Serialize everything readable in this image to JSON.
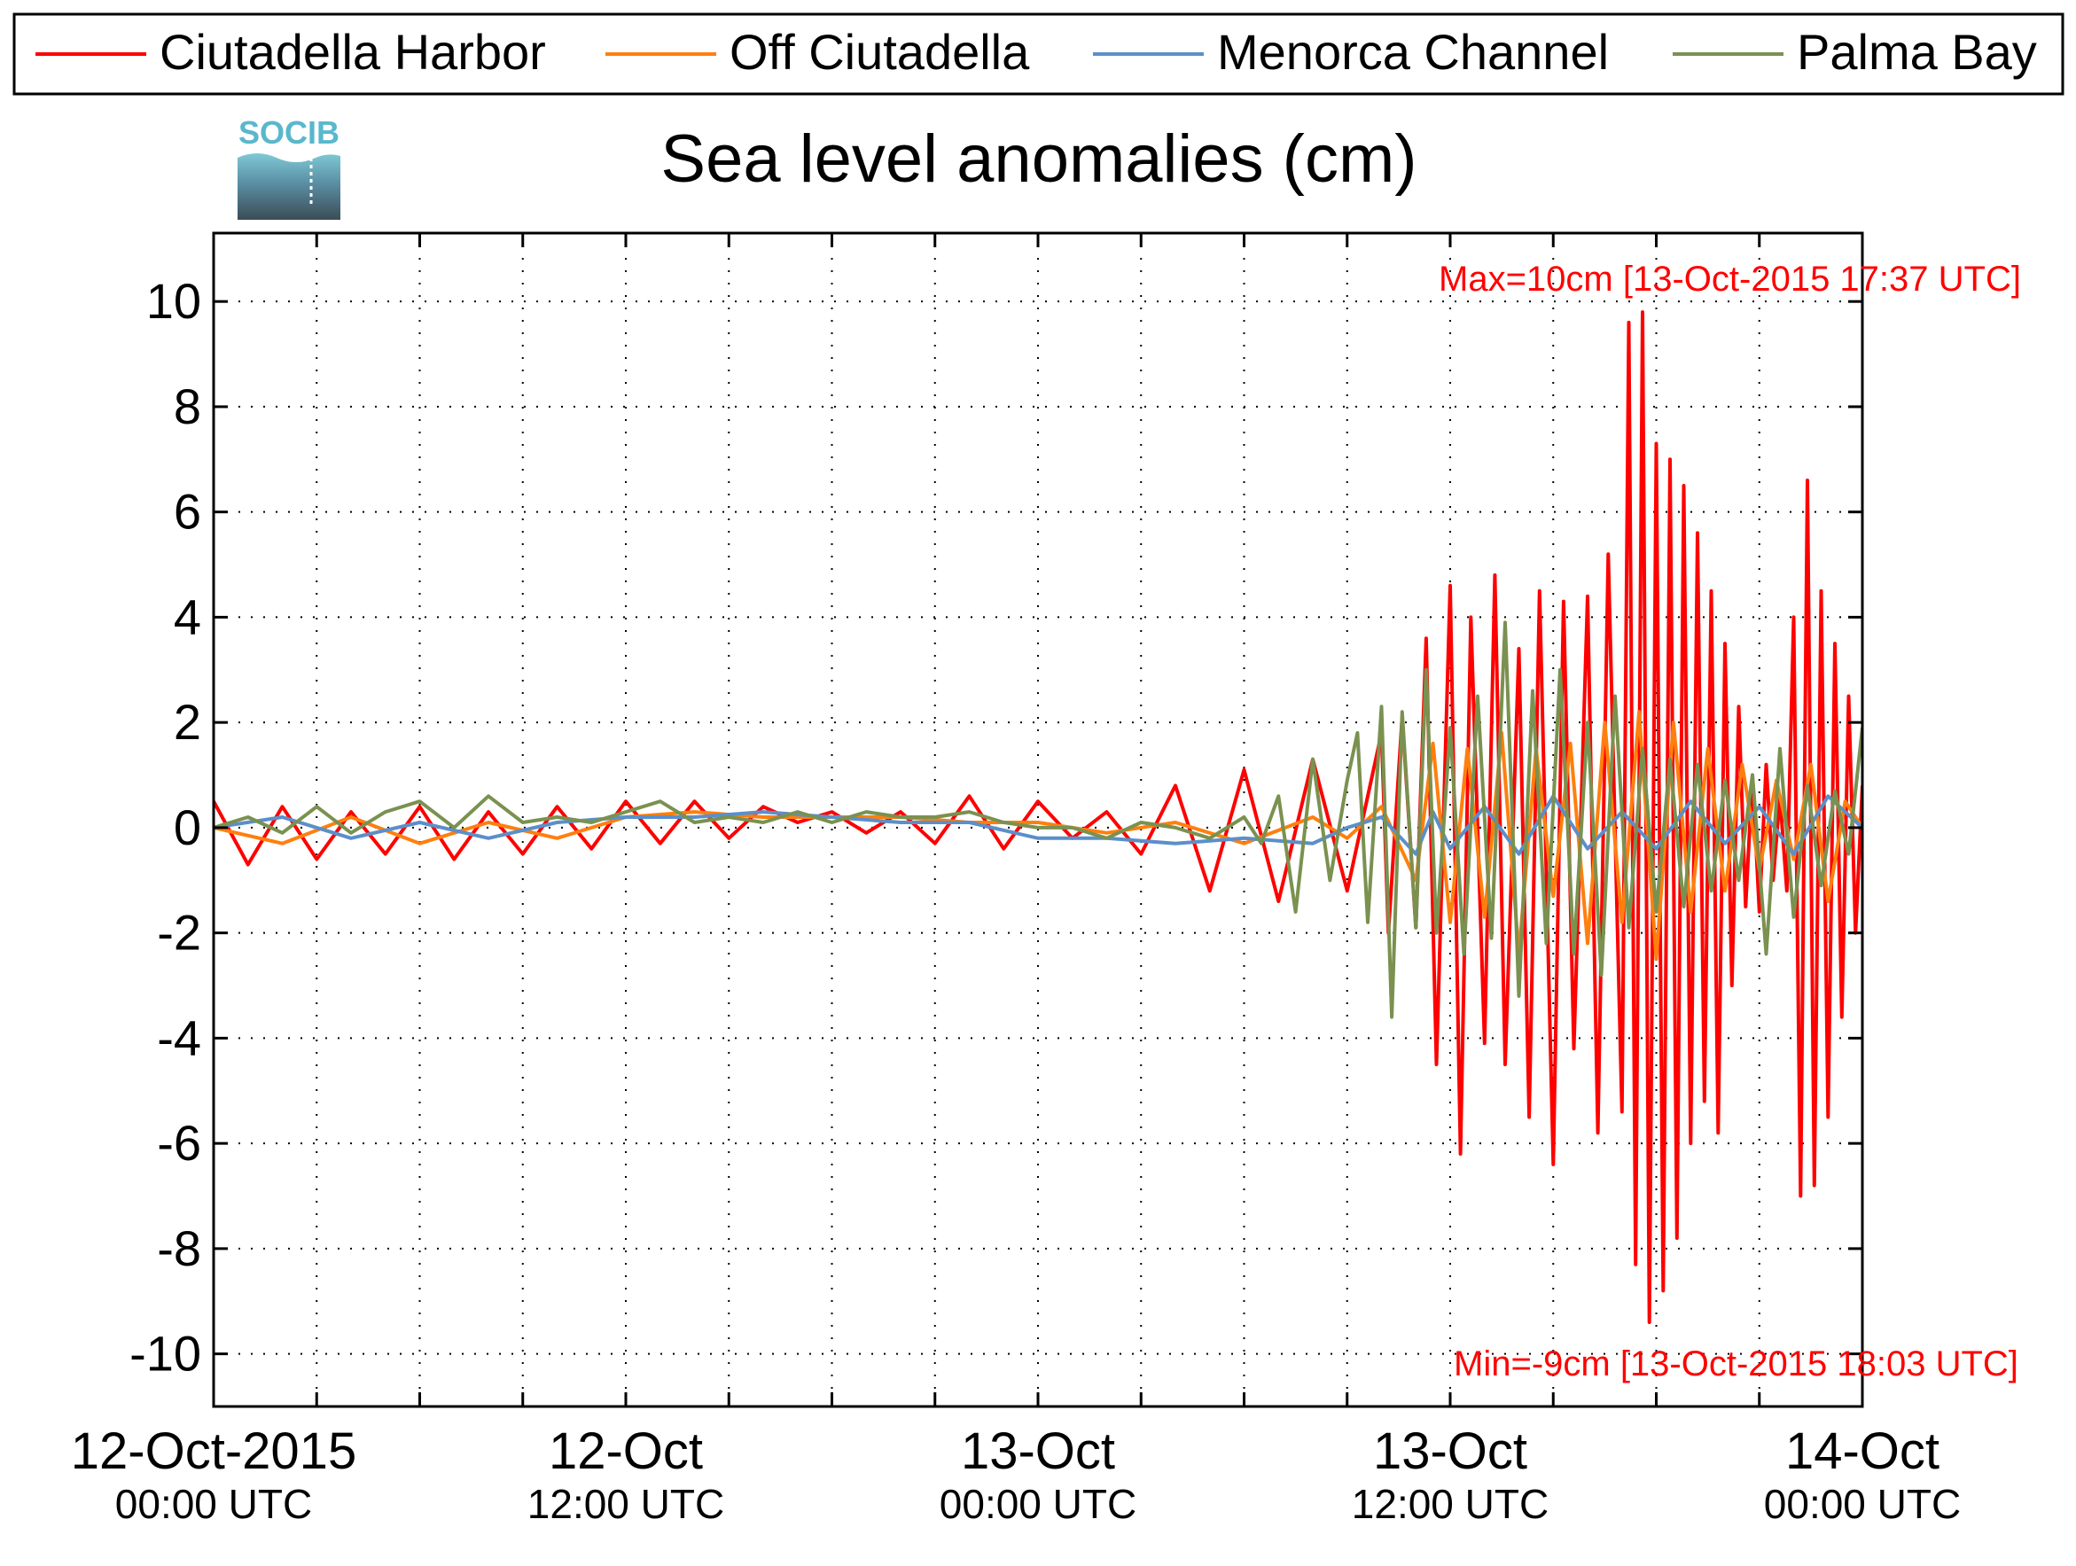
{
  "chart_data": {
    "type": "line",
    "title": "Sea level anomalies (cm)",
    "logo_text": "SOCIB",
    "xlabel": "",
    "ylabel": "",
    "x_unit": "hours since 12-Oct-2015 00:00 UTC",
    "xlim": [
      0,
      48
    ],
    "ylim": [
      -11,
      11.3
    ],
    "yticks": [
      -10,
      -8,
      -6,
      -4,
      -2,
      0,
      2,
      4,
      6,
      8,
      10
    ],
    "x_major_ticks": [
      {
        "x": 0,
        "line1": "12-Oct-2015",
        "line2": "00:00 UTC"
      },
      {
        "x": 12,
        "line1": "12-Oct",
        "line2": "12:00 UTC"
      },
      {
        "x": 24,
        "line1": "13-Oct",
        "line2": "00:00 UTC"
      },
      {
        "x": 36,
        "line1": "13-Oct",
        "line2": "12:00 UTC"
      },
      {
        "x": 48,
        "line1": "14-Oct",
        "line2": "00:00 UTC"
      }
    ],
    "x_minor_step": 3,
    "grid": true,
    "legend_position": "top",
    "annotations": {
      "max": "Max=10cm [13-Oct-2015 17:37 UTC]",
      "min": "Min=-9cm [13-Oct-2015 18:03 UTC]"
    },
    "series": [
      {
        "name": "Ciutadella Harbor",
        "color": "#ff0000",
        "x": [
          0,
          1,
          2,
          3,
          4,
          5,
          6,
          7,
          8,
          9,
          10,
          11,
          12,
          13,
          14,
          15,
          16,
          17,
          18,
          19,
          20,
          21,
          22,
          23,
          24,
          25,
          26,
          27,
          28,
          29,
          30,
          31,
          32,
          33,
          34,
          34.2,
          34.6,
          35,
          35.3,
          35.6,
          36,
          36.3,
          36.6,
          37,
          37.3,
          37.6,
          38,
          38.3,
          38.6,
          39,
          39.3,
          39.6,
          40,
          40.3,
          40.6,
          41,
          41.2,
          41.4,
          41.6,
          41.8,
          42,
          42.2,
          42.4,
          42.6,
          42.8,
          43,
          43.2,
          43.4,
          43.6,
          43.8,
          44,
          44.2,
          44.4,
          44.6,
          44.8,
          45,
          45.2,
          45.4,
          45.6,
          45.8,
          46,
          46.2,
          46.4,
          46.6,
          46.8,
          47,
          47.2,
          47.4,
          47.6,
          47.8,
          48
        ],
        "y": [
          0.5,
          -0.7,
          0.4,
          -0.6,
          0.3,
          -0.5,
          0.4,
          -0.6,
          0.3,
          -0.5,
          0.4,
          -0.4,
          0.5,
          -0.3,
          0.5,
          -0.2,
          0.4,
          0.1,
          0.3,
          -0.1,
          0.3,
          -0.3,
          0.6,
          -0.4,
          0.5,
          -0.2,
          0.3,
          -0.5,
          0.8,
          -1.2,
          1.1,
          -1.4,
          1.3,
          -1.2,
          1.8,
          -2.0,
          2.1,
          -1.9,
          3.6,
          -4.5,
          4.6,
          -6.2,
          4.0,
          -4.1,
          4.8,
          -4.5,
          3.4,
          -5.5,
          4.5,
          -6.4,
          4.3,
          -4.2,
          4.4,
          -5.8,
          5.2,
          -5.4,
          9.6,
          -8.3,
          9.8,
          -9.4,
          7.3,
          -8.8,
          7.0,
          -7.8,
          6.5,
          -6.0,
          5.6,
          -5.2,
          4.5,
          -5.8,
          3.5,
          -3.0,
          2.3,
          -1.5,
          1.0,
          -1.6,
          1.2,
          -1.0,
          0.6,
          -1.2,
          4.0,
          -7.0,
          6.6,
          -6.8,
          4.5,
          -5.5,
          3.5,
          -3.6,
          2.5,
          -2.0,
          0.8
        ],
        "label": "Ciutadella Harbor"
      },
      {
        "name": "Off Ciutadella",
        "color": "#ff7f0e",
        "x": [
          0,
          2,
          4,
          6,
          8,
          10,
          12,
          14,
          16,
          18,
          20,
          22,
          24,
          26,
          28,
          30,
          32,
          33,
          34,
          35,
          35.5,
          36,
          36.5,
          37,
          37.5,
          38,
          38.5,
          39,
          39.5,
          40,
          40.5,
          41,
          41.5,
          42,
          42.5,
          43,
          43.5,
          44,
          44.5,
          45,
          45.5,
          46,
          46.5,
          47,
          47.5,
          48
        ],
        "y": [
          0,
          -0.3,
          0.2,
          -0.3,
          0.1,
          -0.2,
          0.2,
          0.3,
          0.2,
          0.2,
          0.2,
          0.1,
          0.1,
          -0.1,
          0.1,
          -0.3,
          0.2,
          -0.2,
          0.4,
          -1.0,
          1.6,
          -1.8,
          1.5,
          -1.7,
          1.8,
          -2.4,
          1.5,
          -1.3,
          1.6,
          -2.2,
          2.0,
          -1.8,
          2.2,
          -2.5,
          2.0,
          -1.6,
          1.5,
          -1.2,
          1.2,
          -0.8,
          0.9,
          -0.6,
          1.2,
          -1.4,
          0.5,
          0.0
        ],
        "label": "Off Ciutadella"
      },
      {
        "name": "Menorca Channel",
        "color": "#5b8fc9",
        "x": [
          0,
          2,
          4,
          6,
          8,
          10,
          12,
          14,
          16,
          18,
          20,
          22,
          24,
          26,
          28,
          30,
          32,
          33,
          34,
          35,
          35.5,
          36,
          37,
          38,
          39,
          40,
          41,
          42,
          43,
          44,
          45,
          46,
          47,
          48
        ],
        "y": [
          0,
          0.2,
          -0.2,
          0.1,
          -0.2,
          0.1,
          0.2,
          0.2,
          0.3,
          0.2,
          0.1,
          0.1,
          -0.2,
          -0.2,
          -0.3,
          -0.2,
          -0.3,
          0.0,
          0.2,
          -0.5,
          0.3,
          -0.4,
          0.4,
          -0.5,
          0.6,
          -0.4,
          0.3,
          -0.4,
          0.5,
          -0.3,
          0.4,
          -0.5,
          0.6,
          0.0
        ],
        "label": "Menorca Channel"
      },
      {
        "name": "Palma Bay",
        "color": "#7a9150",
        "x": [
          0,
          1,
          2,
          3,
          4,
          5,
          6,
          7,
          8,
          9,
          10,
          11,
          12,
          13,
          14,
          15,
          16,
          17,
          18,
          19,
          20,
          21,
          22,
          23,
          24,
          25,
          26,
          27,
          28,
          29,
          30,
          30.5,
          31,
          31.5,
          32,
          32.5,
          33,
          33.3,
          33.6,
          34,
          34.3,
          34.6,
          35,
          35.3,
          35.6,
          36,
          36.4,
          36.8,
          37.2,
          37.6,
          38,
          38.4,
          38.8,
          39.2,
          39.6,
          40,
          40.4,
          40.8,
          41.2,
          41.6,
          42,
          42.4,
          42.8,
          43.2,
          43.6,
          44,
          44.4,
          44.8,
          45.2,
          45.6,
          46,
          46.4,
          46.8,
          47.2,
          47.6,
          48
        ],
        "y": [
          0,
          0.2,
          -0.1,
          0.4,
          -0.1,
          0.3,
          0.5,
          0.0,
          0.6,
          0.1,
          0.2,
          0.1,
          0.3,
          0.5,
          0.1,
          0.2,
          0.1,
          0.3,
          0.1,
          0.3,
          0.2,
          0.2,
          0.3,
          0.1,
          0.0,
          0.0,
          -0.2,
          0.1,
          0.0,
          -0.2,
          0.2,
          -0.3,
          0.6,
          -1.6,
          1.3,
          -1.0,
          0.9,
          1.8,
          -1.8,
          2.3,
          -3.6,
          2.2,
          -1.9,
          3.0,
          -2.0,
          1.9,
          -2.4,
          2.5,
          -2.1,
          3.9,
          -3.2,
          2.6,
          -2.2,
          3.0,
          -2.4,
          2.0,
          -2.8,
          2.5,
          -1.9,
          1.5,
          -1.6,
          1.3,
          -1.5,
          1.2,
          -1.2,
          0.9,
          -1.0,
          1.0,
          -2.4,
          1.5,
          -1.7,
          0.8,
          -1.1,
          0.7,
          -0.5,
          1.9
        ],
        "label": "Palma Bay"
      }
    ]
  }
}
